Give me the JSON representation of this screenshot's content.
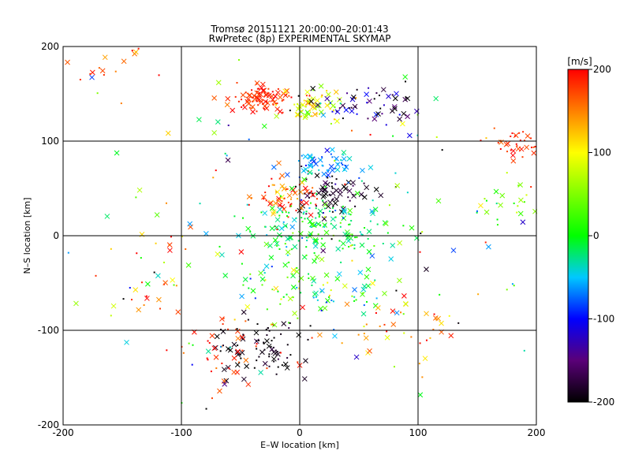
{
  "chart_data": {
    "type": "scatter",
    "title": "Tromsø 20151121 20:00:00–20:01:43",
    "subtitle": "RwPretec (8p) EXPERIMENTAL SKYMAP",
    "xlabel": "E–W location [km]",
    "ylabel": "N–S location [km]",
    "xlim": [
      -200,
      200
    ],
    "ylim": [
      -200,
      200
    ],
    "x_ticks": [
      -200,
      -100,
      0,
      100,
      200
    ],
    "y_ticks": [
      -200,
      -100,
      0,
      100,
      200
    ],
    "x_tick_labels": [
      "-200",
      "-100",
      "0",
      "100",
      "200"
    ],
    "y_tick_labels": [
      "-200",
      "-100",
      "0",
      "100",
      "200"
    ],
    "grid": true,
    "marker_types": [
      "cross",
      "dot"
    ],
    "colorbar": {
      "label": "[m/s]",
      "range": [
        -200,
        200
      ],
      "ticks": [
        200,
        100,
        0,
        -100,
        -200
      ],
      "tick_labels": [
        "200",
        "100",
        "0",
        "-100",
        "-200"
      ],
      "colormap": "black-purple-blue-cyan-green-yellow-red",
      "placement": "right"
    },
    "clusters": [
      {
        "x": -35,
        "y": 145,
        "sx": 15,
        "sy": 7,
        "n": 90,
        "v": 185,
        "sv": 15
      },
      {
        "x": 10,
        "y": 135,
        "sx": 12,
        "sy": 8,
        "n": 60,
        "v": 90,
        "sv": 35
      },
      {
        "x": 55,
        "y": 140,
        "sx": 25,
        "sy": 10,
        "n": 60,
        "v": -150,
        "sv": 50
      },
      {
        "x": 20,
        "y": 75,
        "sx": 15,
        "sy": 6,
        "n": 60,
        "v": -60,
        "sv": 20
      },
      {
        "x": 30,
        "y": 45,
        "sx": 15,
        "sy": 10,
        "n": 70,
        "v": -190,
        "sv": 15
      },
      {
        "x": -10,
        "y": 40,
        "sx": 12,
        "sy": 12,
        "n": 60,
        "v": 170,
        "sv": 35
      },
      {
        "x": 15,
        "y": 5,
        "sx": 30,
        "sy": 18,
        "n": 160,
        "v": -10,
        "sv": 25
      },
      {
        "x": 15,
        "y": -55,
        "sx": 30,
        "sy": 20,
        "n": 90,
        "v": 10,
        "sv": 55
      },
      {
        "x": -30,
        "y": -120,
        "sx": 22,
        "sy": 18,
        "n": 80,
        "v": -195,
        "sv": 10
      },
      {
        "x": -60,
        "y": -120,
        "sx": 25,
        "sy": 20,
        "n": 40,
        "v": 185,
        "sv": 15
      },
      {
        "x": 190,
        "y": 95,
        "sx": 15,
        "sy": 8,
        "n": 45,
        "v": 185,
        "sv": 15
      },
      {
        "x": 175,
        "y": 35,
        "sx": 20,
        "sy": 12,
        "n": 25,
        "v": 45,
        "sv": 40
      },
      {
        "x": -165,
        "y": 175,
        "sx": 20,
        "sy": 15,
        "n": 20,
        "v": 180,
        "sv": 30
      },
      {
        "x": -130,
        "y": -40,
        "sx": 25,
        "sy": 30,
        "n": 30,
        "v": 130,
        "sv": 60
      },
      {
        "x": 80,
        "y": -95,
        "sx": 25,
        "sy": 20,
        "n": 40,
        "v": 160,
        "sv": 50
      },
      {
        "x": 0,
        "y": 0,
        "sx": 100,
        "sy": 100,
        "n": 160,
        "v": 0,
        "sv": 120
      }
    ]
  }
}
